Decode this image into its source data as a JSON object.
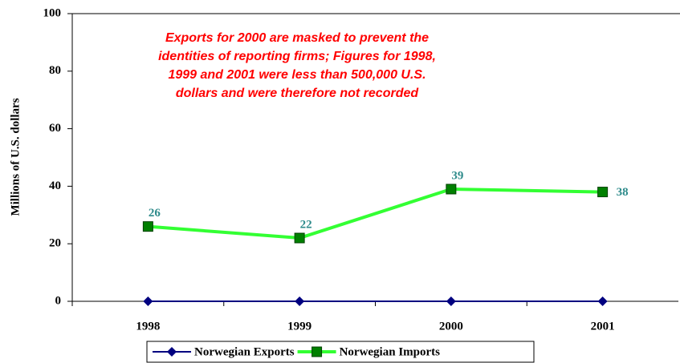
{
  "chart_data": {
    "type": "line",
    "y_label": "Millions of U.S. dollars",
    "annotation": [
      "Exports for 2000 are masked to prevent the",
      "identities of reporting firms; Figures for 1998,",
      "1999 and 2001 were less than 500,000 U.S.",
      "dollars and were therefore not recorded"
    ],
    "annotation_color": "#ff0000",
    "categories": [
      "1998",
      "1999",
      "2000",
      "2001"
    ],
    "series": [
      {
        "name": "Norwegian Exports",
        "color": "#000080",
        "marker": "diamond",
        "marker_color": "#000080",
        "values": [
          0,
          0,
          0,
          0
        ],
        "data_labels": false
      },
      {
        "name": "Norwegian Imports",
        "color": "#33ff33",
        "marker": "square",
        "marker_color": "#008000",
        "values": [
          26,
          22,
          39,
          38
        ],
        "data_labels": true
      }
    ],
    "data_label_color": "#2e8b8b",
    "ylim": [
      0,
      100
    ],
    "yticks": [
      0,
      20,
      40,
      60,
      80,
      100
    ],
    "grid": false,
    "legend": "bottom"
  }
}
